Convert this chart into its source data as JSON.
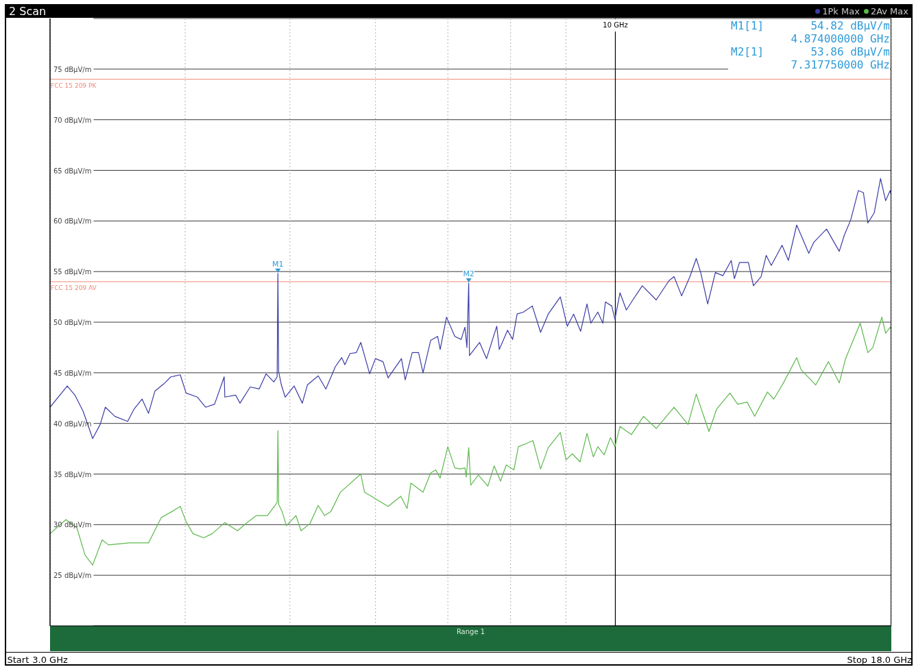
{
  "chart_data": {
    "type": "line",
    "title": "2 Scan",
    "xlim": [
      3,
      18
    ],
    "ylim": [
      20,
      80
    ],
    "log": "x",
    "grid": true,
    "legend": "top right",
    "xticks": [
      {
        "value": 3,
        "label": "3.0 GHz"
      },
      {
        "value": 4,
        "label": null
      },
      {
        "value": 5,
        "label": null
      },
      {
        "value": 6,
        "label": null
      },
      {
        "value": 7,
        "label": null
      },
      {
        "value": 8,
        "label": null
      },
      {
        "value": 9,
        "label": null
      },
      {
        "value": 10,
        "label": null
      },
      {
        "value": 18,
        "label": "18.0 GHz"
      }
    ],
    "yticks": [
      {
        "value": 25,
        "label": "25 dBµV/m"
      },
      {
        "value": 30,
        "label": "30 dBµV/m"
      },
      {
        "value": 35,
        "label": "35 dBµV/m"
      },
      {
        "value": 40,
        "label": "40 dBµV/m"
      },
      {
        "value": 45,
        "label": "45 dBµV/m"
      },
      {
        "value": 50,
        "label": "50 dBµV/m"
      },
      {
        "value": 55,
        "label": "55 dBµV/m"
      },
      {
        "value": 60,
        "label": "60 dBµV/m"
      },
      {
        "value": 65,
        "label": "65 dBµV/m"
      },
      {
        "value": 70,
        "label": "70 dBµV/m"
      },
      {
        "value": 75,
        "label": "75 dBµV/m"
      }
    ],
    "series": [
      {
        "name": "1Pk Max",
        "color": "#3b3ba6",
        "x": [
          3.0,
          3.112,
          3.163,
          3.219,
          3.285,
          3.338,
          3.375,
          3.444,
          3.539,
          3.587,
          3.65,
          3.7,
          3.751,
          3.822,
          3.88,
          3.959,
          4.008,
          4.106,
          4.179,
          4.259,
          4.347,
          4.353,
          4.454,
          4.496,
          4.595,
          4.683,
          4.753,
          4.831,
          4.866,
          4.874,
          4.882,
          4.91,
          4.95,
          5.045,
          5.134,
          5.19,
          5.311,
          5.398,
          5.508,
          5.583,
          5.621,
          5.683,
          5.76,
          5.815,
          5.926,
          5.999,
          6.097,
          6.163,
          6.341,
          6.392,
          6.488,
          6.577,
          6.639,
          6.748,
          6.849,
          6.886,
          6.98,
          7.104,
          7.201,
          7.259,
          7.29,
          7.31775,
          7.329,
          7.489,
          7.601,
          7.768,
          7.81,
          7.949,
          8.035,
          8.112,
          8.222,
          8.379,
          8.528,
          8.668,
          8.894,
          9.027,
          9.15,
          9.287,
          9.414,
          9.491,
          9.633,
          9.738,
          9.791,
          9.924,
          9.991,
          10.1,
          10.238,
          10.38,
          10.59,
          10.91,
          11.21,
          11.332,
          11.517,
          11.722,
          11.881,
          11.994,
          12.174,
          12.374,
          12.576,
          12.799,
          12.886,
          13.027,
          13.276,
          13.42,
          13.64,
          13.789,
          13.939,
          14.263,
          14.457,
          14.714,
          14.894,
          15.097,
          15.262,
          15.68,
          15.894,
          16.111,
          16.286,
          16.508,
          16.778,
          16.961,
          17.122,
          17.356,
          17.592,
          17.784,
          17.953,
          18.0
        ],
        "values": [
          41.6,
          43.7,
          42.8,
          41.2,
          38.5,
          39.9,
          41.6,
          40.7,
          40.2,
          41.4,
          42.4,
          41.0,
          43.2,
          43.9,
          44.6,
          44.8,
          43.0,
          42.6,
          41.6,
          41.9,
          44.6,
          42.6,
          42.8,
          42.0,
          43.6,
          43.4,
          44.9,
          44.1,
          44.6,
          54.82,
          45.1,
          43.8,
          42.6,
          43.7,
          42.0,
          43.8,
          44.7,
          43.4,
          45.6,
          46.5,
          45.8,
          46.9,
          47.0,
          48.0,
          44.9,
          46.4,
          46.1,
          44.5,
          46.4,
          44.3,
          47.0,
          47.0,
          45.0,
          48.2,
          48.6,
          47.3,
          50.5,
          48.6,
          48.3,
          49.5,
          47.5,
          53.86,
          46.7,
          48.0,
          46.4,
          49.6,
          47.3,
          49.2,
          48.3,
          50.8,
          51.0,
          51.6,
          49.0,
          50.8,
          52.5,
          49.6,
          50.8,
          49.1,
          51.8,
          49.9,
          51.0,
          49.9,
          52.0,
          51.6,
          50.3,
          52.9,
          51.2,
          52.2,
          53.6,
          52.2,
          54.1,
          54.5,
          52.6,
          54.5,
          56.3,
          54.9,
          51.8,
          54.9,
          54.6,
          56.1,
          54.3,
          55.9,
          55.9,
          53.6,
          54.5,
          56.6,
          55.6,
          57.6,
          56.1,
          59.6,
          58.3,
          56.8,
          57.9,
          59.2,
          58.1,
          57.0,
          58.6,
          60.1,
          63.0,
          62.8,
          59.8,
          60.8,
          64.2,
          62.0,
          63.0,
          62.5
        ]
      },
      {
        "name": "2Av Max",
        "color": "#5cb84c",
        "x": [
          3.0,
          3.103,
          3.176,
          3.232,
          3.285,
          3.352,
          3.398,
          3.553,
          3.7,
          3.802,
          3.89,
          3.959,
          4.008,
          4.068,
          4.162,
          4.236,
          4.353,
          4.472,
          4.576,
          4.657,
          4.766,
          4.844,
          4.866,
          4.874,
          4.882,
          4.917,
          4.963,
          5.065,
          5.12,
          5.218,
          5.311,
          5.383,
          5.456,
          5.568,
          5.815,
          5.862,
          6.163,
          6.332,
          6.418,
          6.47,
          6.639,
          6.748,
          6.821,
          6.886,
          6.999,
          7.104,
          7.181,
          7.259,
          7.279,
          7.31775,
          7.349,
          7.469,
          7.622,
          7.726,
          7.831,
          7.927,
          8.057,
          8.134,
          8.267,
          8.391,
          8.528,
          8.668,
          8.894,
          9.003,
          9.125,
          9.275,
          9.414,
          9.542,
          9.633,
          9.764,
          9.897,
          9.991,
          10.1,
          10.349,
          10.619,
          10.91,
          11.332,
          11.674,
          11.881,
          12.207,
          12.407,
          12.765,
          12.974,
          13.24,
          13.456,
          13.826,
          14.015,
          14.321,
          14.714,
          14.854,
          15.324,
          15.744,
          16.111,
          16.33,
          16.846,
          17.122,
          17.307,
          17.64,
          17.784,
          17.953,
          18.0
        ],
        "values": [
          29.1,
          30.5,
          29.7,
          27.0,
          26.0,
          28.5,
          28.0,
          28.2,
          28.2,
          30.7,
          31.3,
          31.8,
          30.3,
          29.1,
          28.7,
          29.1,
          30.2,
          29.4,
          30.3,
          30.9,
          30.9,
          31.9,
          32.2,
          39.3,
          32.0,
          31.3,
          29.9,
          30.9,
          29.4,
          30.1,
          31.9,
          30.9,
          31.3,
          33.2,
          35.0,
          33.2,
          31.8,
          32.8,
          31.6,
          34.1,
          33.2,
          35.1,
          35.4,
          34.6,
          37.7,
          35.6,
          35.5,
          35.6,
          34.7,
          37.6,
          33.9,
          34.9,
          33.8,
          35.8,
          34.3,
          35.9,
          35.4,
          37.7,
          38.0,
          38.3,
          35.5,
          37.6,
          39.1,
          36.4,
          37.0,
          36.2,
          39.0,
          36.7,
          37.7,
          36.9,
          38.6,
          37.7,
          39.7,
          38.9,
          40.7,
          39.5,
          41.6,
          39.9,
          42.9,
          39.2,
          41.4,
          43.0,
          41.9,
          42.1,
          40.7,
          43.1,
          42.4,
          44.1,
          46.5,
          45.3,
          43.8,
          46.1,
          44.0,
          46.4,
          49.9,
          47.0,
          47.5,
          50.5,
          48.9,
          49.5,
          49.2
        ]
      }
    ],
    "ref_lines": [
      {
        "axis": "y",
        "value": 74,
        "label": "FCC 15 209 PK",
        "color": "#f08878"
      },
      {
        "axis": "y",
        "value": 54,
        "label": "FCC 15 209 AV",
        "color": "#f08878"
      },
      {
        "axis": "x",
        "value": 10,
        "label": "10 GHz",
        "color": "#000000"
      }
    ],
    "annotations": [
      "Start",
      "Stop",
      "Range 1",
      {
        "text": "M1",
        "x": 4.874,
        "y": 54.82
      },
      {
        "text": "M2",
        "x": 7.31775,
        "y": 53.86
      },
      "M1[1]",
      "54.82 dBµV/m",
      "4.874000000 GHz",
      "M2[1]",
      "53.86 dBµV/m",
      "7.317750000 GHz"
    ]
  }
}
